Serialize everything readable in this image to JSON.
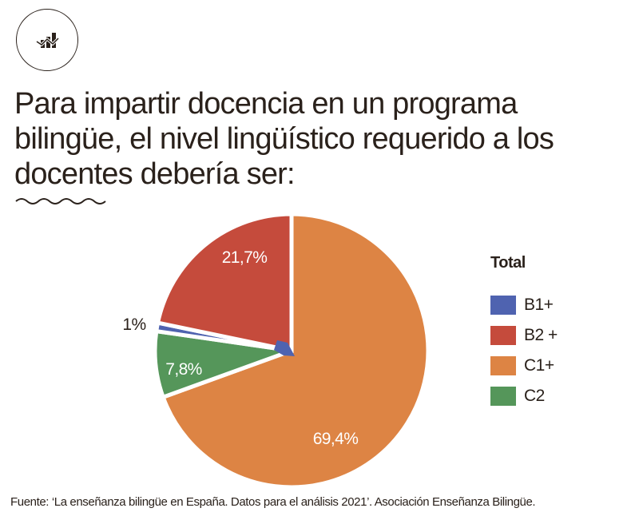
{
  "header": {
    "icon": "chart-trend-icon",
    "title": "Para impartir docencia en un programa bilingüe, el nivel lingüístico requerido a los docentes debería ser:"
  },
  "legend": {
    "title": "Total"
  },
  "source": "Fuente: ‘La enseñanza bilingüe en España. Datos para el análisis 2021’. Asociación Enseñanza Bilingüe.",
  "colors": {
    "B1+": "#4f63b0",
    "B2+": "#c54b3c",
    "C1+": "#dd8444",
    "C2": "#55965a",
    "text": "#2a211b"
  },
  "chart_data": {
    "type": "pie",
    "title": "Para impartir docencia en un programa bilingüe, el nivel lingüístico requerido a los docentes debería ser:",
    "legend_title": "Total",
    "legend_position": "right",
    "start": "top",
    "direction": "clockwise",
    "slices": [
      {
        "label": "C1+",
        "legend_label": "C1+",
        "value": 69.4,
        "display": "69,4%",
        "color": "#dd8444",
        "label_color": "#ffffff"
      },
      {
        "label": "C2",
        "legend_label": "C2",
        "value": 7.8,
        "display": "7,8%",
        "color": "#55965a",
        "label_color": "#ffffff"
      },
      {
        "label": "B1+",
        "legend_label": "B1+",
        "value": 1,
        "display": "1%",
        "color": "#4f63b0",
        "label_color": "#2a211b"
      },
      {
        "label": "B2+",
        "legend_label": "B2 +",
        "value": 21.7,
        "display": "21,7%",
        "color": "#c54b3c",
        "label_color": "#ffffff"
      }
    ],
    "legend_order": [
      "B1+",
      "B2+",
      "C1+",
      "C2"
    ]
  }
}
